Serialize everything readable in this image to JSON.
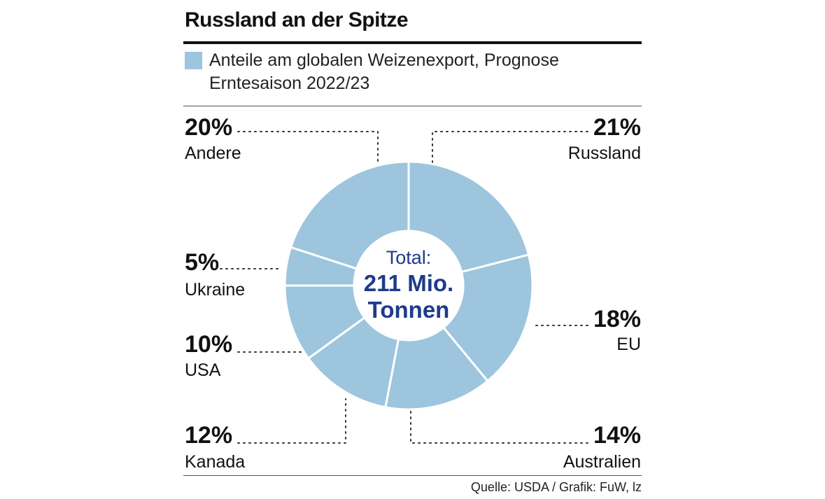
{
  "header": {
    "title": "Russland an der Spitze",
    "legend": "Anteile am globalen Weizenexport, Prognose Erntesaison 2022/23"
  },
  "colors": {
    "slice": "#9dc6de",
    "slice_border": "#ffffff",
    "center_text": "#1e3a8a",
    "text": "#111111"
  },
  "chart_data": {
    "type": "pie",
    "variant": "donut",
    "title": "Russland an der Spitze",
    "subtitle": "Anteile am globalen Weizenexport, Prognose Erntesaison 2022/23",
    "center_label": [
      "Total:",
      "211 Mio.",
      "Tonnen"
    ],
    "slices": [
      {
        "label": "Russland",
        "value": 21,
        "value_label": "21%"
      },
      {
        "label": "EU",
        "value": 18,
        "value_label": "18%"
      },
      {
        "label": "Australien",
        "value": 14,
        "value_label": "14%"
      },
      {
        "label": "Kanada",
        "value": 12,
        "value_label": "12%"
      },
      {
        "label": "USA",
        "value": 10,
        "value_label": "10%"
      },
      {
        "label": "Ukraine",
        "value": 5,
        "value_label": "5%"
      },
      {
        "label": "Andere",
        "value": 20,
        "value_label": "20%"
      }
    ]
  },
  "footer": {
    "source": "Quelle: USDA / Grafik: FuW, lz"
  }
}
